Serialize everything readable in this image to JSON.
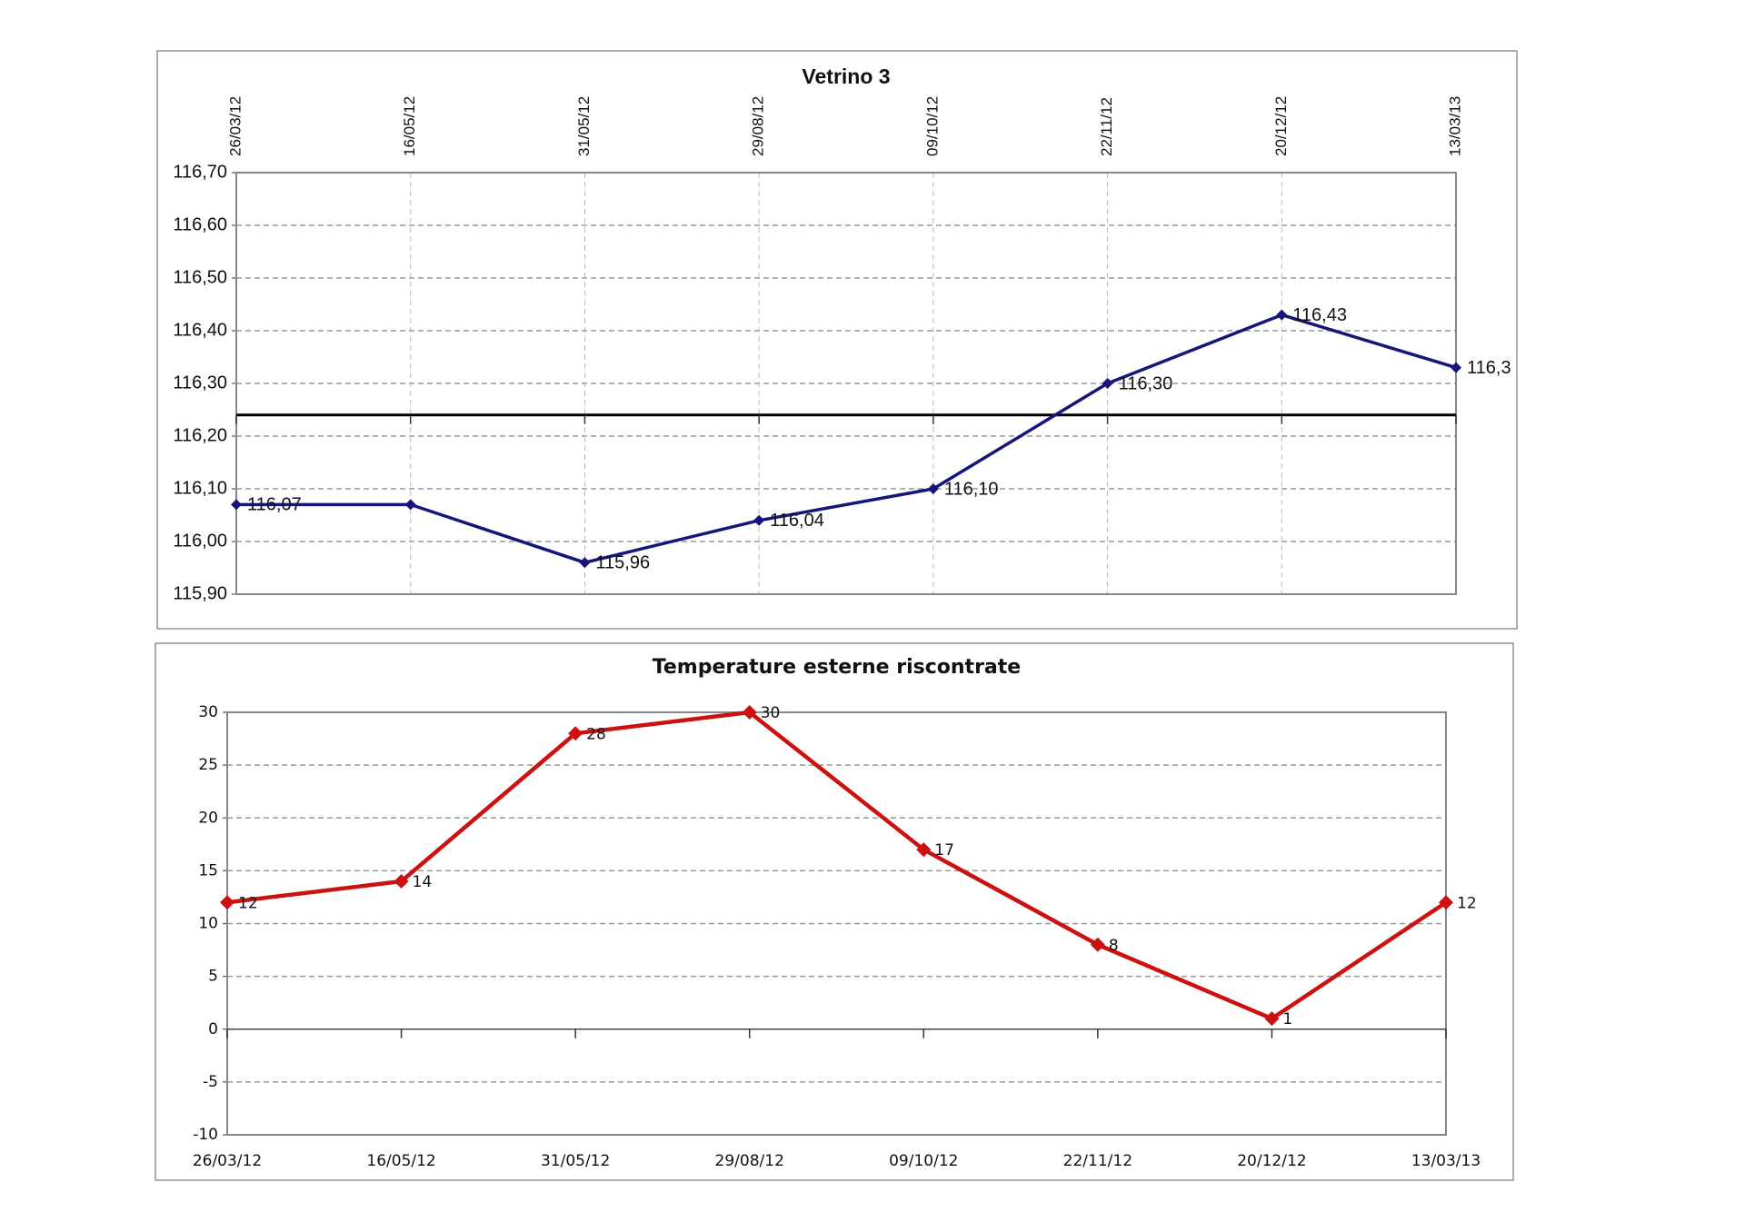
{
  "chart_data": [
    {
      "type": "line",
      "title": "Vetrino 3",
      "categories": [
        "26/03/12",
        "16/05/12",
        "31/05/12",
        "29/08/12",
        "09/10/12",
        "22/11/12",
        "20/12/12",
        "13/03/13"
      ],
      "series": [
        {
          "name": "Vetrino 3",
          "color": "#16167a",
          "values": [
            116.07,
            116.07,
            115.96,
            116.04,
            116.1,
            116.3,
            116.43,
            116.33
          ],
          "value_labels": [
            "116,07",
            null,
            "115,96",
            "116,04",
            "116,10",
            "116,30",
            "116,43",
            "116,3"
          ]
        }
      ],
      "ylim": [
        115.9,
        116.7
      ],
      "yticks": [
        {
          "value": 115.9,
          "label": "115,90"
        },
        {
          "value": 116.0,
          "label": "116,00"
        },
        {
          "value": 116.1,
          "label": "116,10"
        },
        {
          "value": 116.2,
          "label": "116,20"
        },
        {
          "value": 116.3,
          "label": "116,30"
        },
        {
          "value": 116.4,
          "label": "116,40"
        },
        {
          "value": 116.5,
          "label": "116,50"
        },
        {
          "value": 116.6,
          "label": "116,60"
        },
        {
          "value": 116.7,
          "label": "116,70"
        }
      ],
      "xaxis_at": 116.24,
      "category_labels": "top",
      "xgrid": true,
      "ygrid": true
    },
    {
      "type": "line",
      "title": "Temperature esterne riscontrate",
      "categories": [
        "26/03/12",
        "16/05/12",
        "31/05/12",
        "29/08/12",
        "09/10/12",
        "22/11/12",
        "20/12/12",
        "13/03/13"
      ],
      "series": [
        {
          "name": "Temperature",
          "color": "#cc1111",
          "values": [
            12,
            14,
            28,
            30,
            17,
            8,
            1,
            12
          ]
        }
      ],
      "ylim": [
        -10,
        30
      ],
      "yticks": [
        -10,
        -5,
        0,
        5,
        10,
        15,
        20,
        25,
        30
      ],
      "xaxis_at": 0,
      "category_labels": "bottom",
      "xgrid": false,
      "ygrid": true
    }
  ]
}
